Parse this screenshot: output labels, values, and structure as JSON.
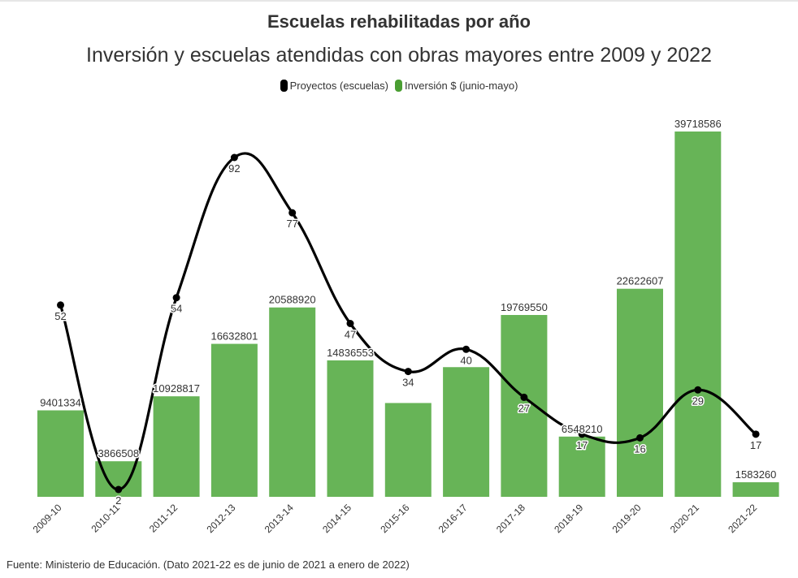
{
  "title": "Escuelas rehabilitadas por año",
  "subtitle": "Inversión y escuelas atendidas con obras mayores entre 2009 y 2022",
  "legend": [
    {
      "label": "Proyectos (escuelas)",
      "color": "#000000"
    },
    {
      "label": "Inversión $ (junio-mayo)",
      "color": "#4a9e32"
    }
  ],
  "footer": "Fuente: Ministerio de Educación. (Dato 2021-22 es de junio de 2021 a enero de 2022)",
  "chart_data": {
    "type": "bar",
    "title": "Escuelas rehabilitadas por año",
    "subtitle": "Inversión y escuelas atendidas con obras mayores entre 2009 y 2022",
    "xlabel": "",
    "ylabel": "",
    "legend_position": "top-center",
    "grid": false,
    "categories": [
      "2009-10",
      "2010-11",
      "2011-12",
      "2012-13",
      "2013-14",
      "2014-15",
      "2015-16",
      "2016-17",
      "2017-18",
      "2018-19",
      "2019-20",
      "2020-21",
      "2021-22"
    ],
    "series": [
      {
        "name": "Inversión $ (junio-mayo)",
        "type": "bar",
        "color": "#67b457",
        "values": [
          9401334,
          3866508,
          10928817,
          16632801,
          20588920,
          14836553,
          10200000,
          14100000,
          19769550,
          6548210,
          22622607,
          39718586,
          1583260
        ],
        "labels": [
          "9401334",
          "3866508",
          "10928817",
          "16632801",
          "20588920",
          "14836553",
          "",
          "",
          "19769550",
          "6548210",
          "22622607",
          "39718586",
          "1583260"
        ],
        "ylim": [
          0,
          40000000
        ]
      },
      {
        "name": "Proyectos (escuelas)",
        "type": "line",
        "color": "#000000",
        "smooth": true,
        "values": [
          52,
          2,
          54,
          92,
          77,
          47,
          34,
          40,
          27,
          17,
          16,
          29,
          17
        ],
        "labels": [
          "52",
          "2",
          "54",
          "92",
          "77",
          "47",
          "34",
          "40",
          "27",
          "17",
          "16",
          "29",
          "17"
        ],
        "ylim": [
          0,
          135
        ]
      }
    ]
  }
}
